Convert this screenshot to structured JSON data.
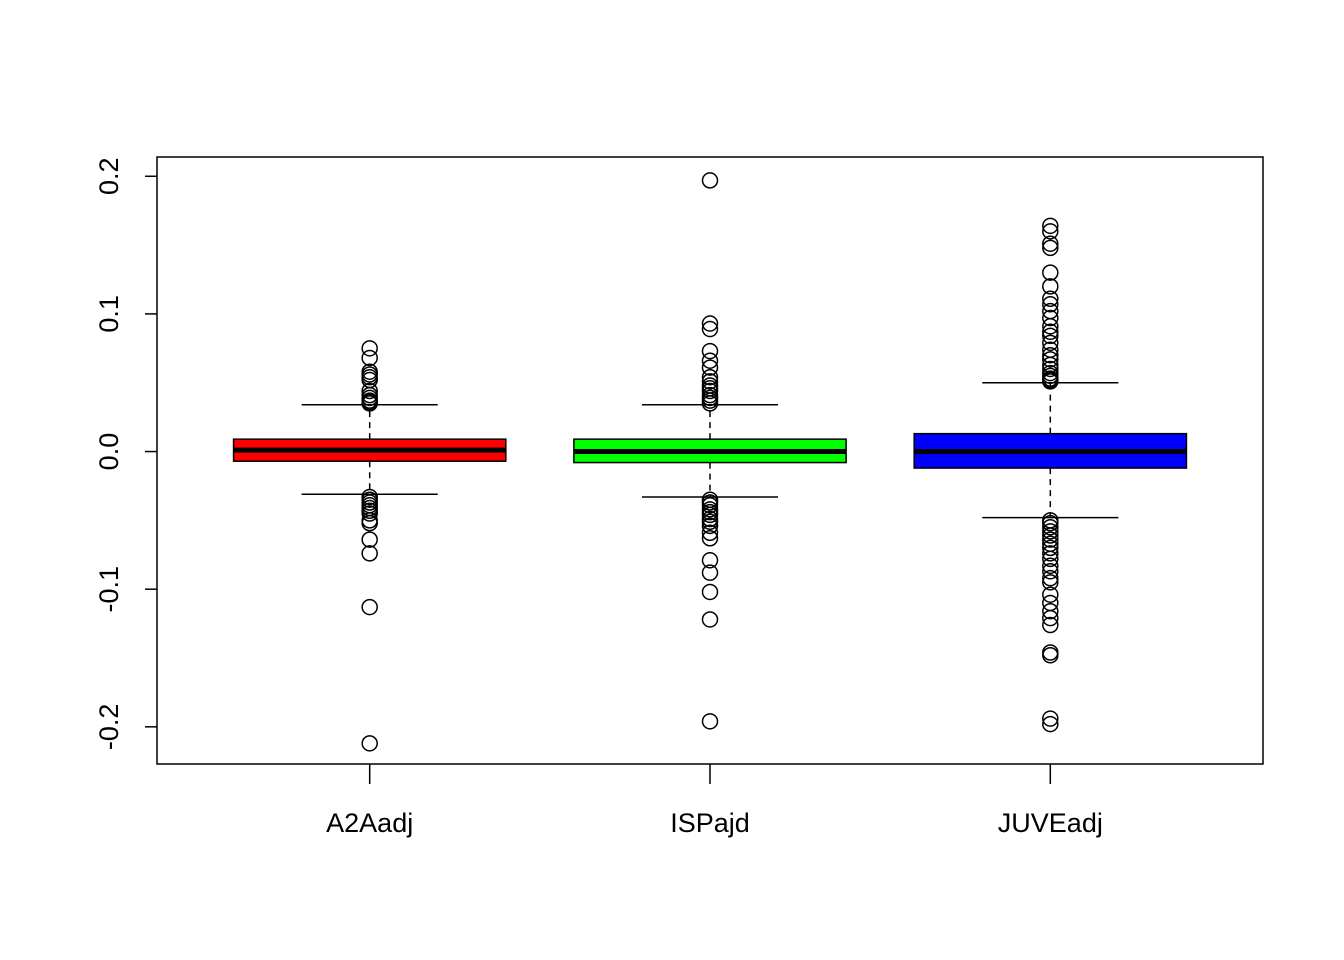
{
  "chart_data": {
    "type": "boxplot",
    "title": "",
    "xlabel": "",
    "ylabel": "",
    "ylim": [
      -0.227,
      0.214
    ],
    "yticks": [
      -0.2,
      -0.1,
      0.0,
      0.1,
      0.2
    ],
    "ytick_labels": [
      "-0.2",
      "-0.1",
      "0.0",
      "0.1",
      "0.2"
    ],
    "grid": false,
    "legend": "none",
    "categories": [
      "A2Aadj",
      "ISPajd",
      "JUVEadj"
    ],
    "series": [
      {
        "category": "A2Aadj",
        "color": "#ff0000",
        "whisker_low": -0.031,
        "q1": -0.007,
        "median": 0.001,
        "q3": 0.009,
        "whisker_high": 0.034,
        "outliers": [
          0.075,
          0.068,
          0.058,
          0.056,
          0.054,
          0.052,
          0.044,
          0.041,
          0.039,
          0.037,
          0.036,
          0.035,
          -0.033,
          -0.035,
          -0.037,
          -0.039,
          -0.041,
          -0.043,
          -0.045,
          -0.05,
          -0.052,
          -0.064,
          -0.074,
          -0.113,
          -0.212
        ]
      },
      {
        "category": "ISPajd",
        "color": "#00ff00",
        "whisker_low": -0.033,
        "q1": -0.008,
        "median": 0.0,
        "q3": 0.009,
        "whisker_high": 0.034,
        "outliers": [
          0.197,
          0.093,
          0.089,
          0.073,
          0.066,
          0.061,
          0.054,
          0.051,
          0.048,
          0.046,
          0.044,
          0.041,
          0.039,
          0.037,
          0.035,
          -0.035,
          -0.037,
          -0.039,
          -0.042,
          -0.044,
          -0.046,
          -0.049,
          -0.051,
          -0.054,
          -0.059,
          -0.063,
          -0.079,
          -0.088,
          -0.102,
          -0.122,
          -0.196
        ]
      },
      {
        "category": "JUVEadj",
        "color": "#0000ff",
        "whisker_low": -0.048,
        "q1": -0.012,
        "median": 0.0,
        "q3": 0.013,
        "whisker_high": 0.05,
        "outliers": [
          0.164,
          0.16,
          0.151,
          0.148,
          0.13,
          0.12,
          0.111,
          0.107,
          0.102,
          0.097,
          0.091,
          0.087,
          0.084,
          0.079,
          0.074,
          0.07,
          0.067,
          0.063,
          0.06,
          0.057,
          0.055,
          0.053,
          0.052,
          0.051,
          -0.05,
          -0.052,
          -0.055,
          -0.058,
          -0.061,
          -0.064,
          -0.067,
          -0.07,
          -0.074,
          -0.078,
          -0.083,
          -0.087,
          -0.092,
          -0.095,
          -0.104,
          -0.11,
          -0.116,
          -0.121,
          -0.126,
          -0.146,
          -0.148,
          -0.194,
          -0.198
        ]
      }
    ]
  }
}
